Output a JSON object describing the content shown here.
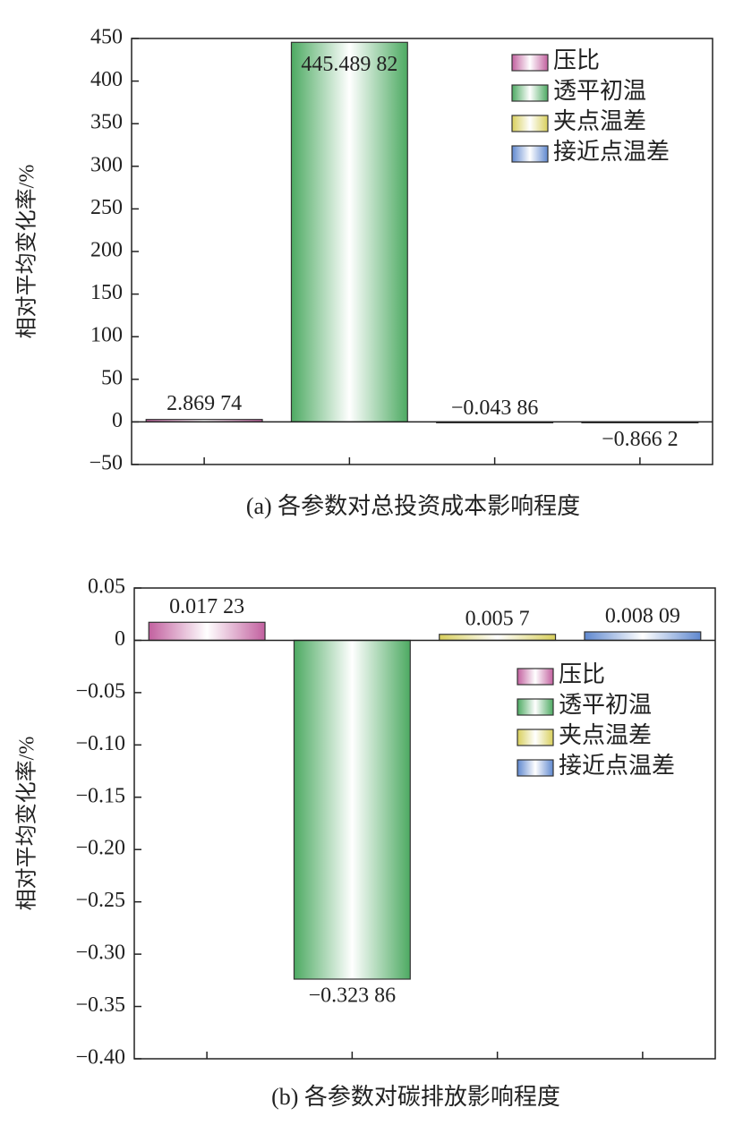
{
  "chart_data": [
    {
      "type": "bar",
      "ylabel": "相对平均变化率/%",
      "caption": "(a) 各参数对总投资成本影响程度",
      "ylim": [
        -50,
        450
      ],
      "yticks": [
        {
          "value": -50,
          "label": "−50"
        },
        0,
        50,
        100,
        150,
        200,
        250,
        300,
        350,
        400,
        450
      ],
      "legend": "upper right",
      "series": [
        {
          "name": "压比",
          "color": "#c2609f",
          "values": [
            2.86974
          ],
          "value_labels": [
            "2.869 74"
          ]
        },
        {
          "name": "透平初温",
          "color": "#4daa62",
          "values": [
            445.48982
          ],
          "value_labels": [
            "445.489 82"
          ]
        },
        {
          "name": "夹点温差",
          "color": "#d8cf5c",
          "values": [
            -0.04386
          ],
          "value_labels": [
            "−0.043 86"
          ]
        },
        {
          "name": "接近点温差",
          "color": "#5f88cf",
          "values": [
            -0.8662
          ],
          "value_labels": [
            "−0.866 2"
          ]
        }
      ]
    },
    {
      "type": "bar",
      "ylabel": "相对平均变化率/%",
      "caption": "(b) 各参数对碳排放影响程度",
      "ylim": [
        -0.4,
        0.05
      ],
      "yticks": [
        {
          "value": -0.4,
          "label": "−0.40"
        },
        {
          "value": -0.35,
          "label": "−0.35"
        },
        {
          "value": -0.3,
          "label": "−0.30"
        },
        {
          "value": -0.25,
          "label": "−0.25"
        },
        {
          "value": -0.2,
          "label": "−0.20"
        },
        {
          "value": -0.15,
          "label": "−0.15"
        },
        {
          "value": -0.1,
          "label": "−0.10"
        },
        {
          "value": -0.05,
          "label": "−0.05"
        },
        0,
        0.05
      ],
      "legend": "upper right",
      "series": [
        {
          "name": "压比",
          "color": "#c2609f",
          "values": [
            0.01723
          ],
          "value_labels": [
            "0.017 23"
          ]
        },
        {
          "name": "透平初温",
          "color": "#4daa62",
          "values": [
            -0.32386
          ],
          "value_labels": [
            "−0.323 86"
          ]
        },
        {
          "name": "夹点温差",
          "color": "#d8cf5c",
          "values": [
            0.0057
          ],
          "value_labels": [
            "0.005 7"
          ]
        },
        {
          "name": "接近点温差",
          "color": "#5f88cf",
          "values": [
            0.00809
          ],
          "value_labels": [
            "0.008 09"
          ]
        }
      ]
    }
  ]
}
